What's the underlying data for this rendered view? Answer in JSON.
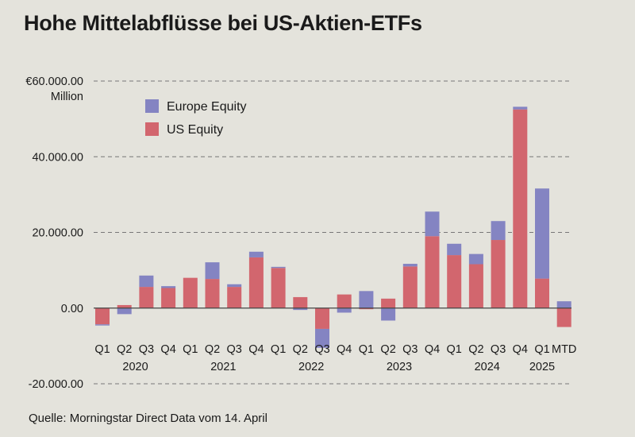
{
  "title": "Hohe Mittelabflüsse bei US-Aktien-ETFs",
  "source": "Quelle: Morningstar Direct Data vom 14. April",
  "colors": {
    "background": "#e4e3dc",
    "us_equity": "#d2666e",
    "europe_equity": "#8484c2",
    "grid": "#777777",
    "axis": "#444444"
  },
  "chart_data": {
    "type": "bar",
    "stacked": true,
    "title": "Hohe Mittelabflüsse bei US-Aktien-ETFs",
    "ylabel": "Million",
    "ylim": [
      -20000,
      60000
    ],
    "yticks": [
      {
        "value": 60000,
        "label": "€60.000.00"
      },
      {
        "value": 40000,
        "label": "40.000.00"
      },
      {
        "value": 20000,
        "label": "20.000.00"
      },
      {
        "value": 0,
        "label": "0.00"
      },
      {
        "value": -20000,
        "label": "-20.000.00"
      }
    ],
    "grid": true,
    "legend_position": "top-left",
    "categories": [
      "Q1",
      "Q2",
      "Q3",
      "Q4",
      "Q1",
      "Q2",
      "Q3",
      "Q4",
      "Q1",
      "Q2",
      "Q3",
      "Q4",
      "Q1",
      "Q2",
      "Q3",
      "Q4",
      "Q1",
      "Q2",
      "Q3",
      "Q4",
      "Q1",
      "MTD"
    ],
    "year_labels": [
      {
        "label": "2020",
        "category_index": 1.5
      },
      {
        "label": "2021",
        "category_index": 5.5
      },
      {
        "label": "2022",
        "category_index": 9.5
      },
      {
        "label": "2023",
        "category_index": 13.5
      },
      {
        "label": "2024",
        "category_index": 17.5
      },
      {
        "label": "2025",
        "category_index": 20
      }
    ],
    "series": [
      {
        "name": "US Equity",
        "color": "#d2666e",
        "values": [
          -4300,
          800,
          5600,
          5300,
          8000,
          7700,
          5600,
          13400,
          10600,
          2900,
          -5500,
          3600,
          -300,
          2500,
          11000,
          19000,
          14000,
          11600,
          18000,
          52500,
          7800,
          -5000
        ]
      },
      {
        "name": "Europe Equity",
        "color": "#8484c2",
        "values": [
          -300,
          -1600,
          3000,
          500,
          0,
          4400,
          700,
          1500,
          300,
          -500,
          -5000,
          -1200,
          4500,
          -3300,
          700,
          6500,
          3000,
          2700,
          5000,
          700,
          23800,
          1800
        ]
      }
    ]
  }
}
